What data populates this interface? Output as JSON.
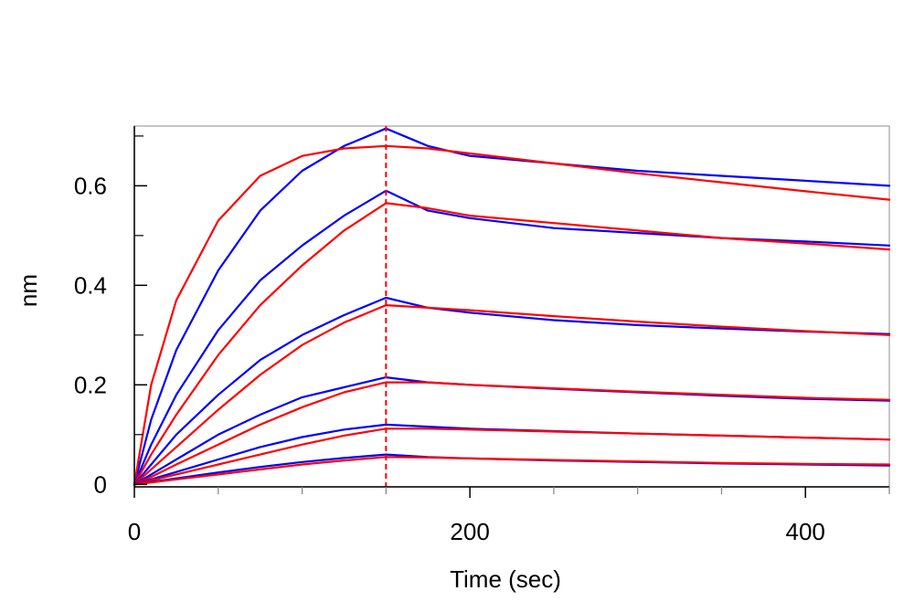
{
  "chart_data": {
    "type": "line",
    "title": "",
    "xlabel": "Time (sec)",
    "ylabel": "nm",
    "xlim": [
      0,
      450
    ],
    "ylim": [
      -0.005,
      0.72
    ],
    "x_ticks": [
      0,
      200,
      400
    ],
    "x_tick_labels": [
      "0",
      "200",
      "400"
    ],
    "y_ticks": [
      0,
      0.2,
      0.4,
      0.6
    ],
    "y_tick_labels": [
      "0",
      "0.2",
      "0.4",
      "0.6"
    ],
    "grid": false,
    "legend": "none",
    "association_end": 150,
    "colors": {
      "measured": "#0000ff",
      "fit": "#ff0000",
      "marker": "#ff0000"
    },
    "series": [
      {
        "role": "measured",
        "peak": 0.715,
        "end": 0.6,
        "x": [
          0,
          10,
          25,
          50,
          75,
          100,
          125,
          150,
          175,
          200,
          250,
          300,
          350,
          400,
          450
        ],
        "y": [
          0.0,
          0.13,
          0.27,
          0.43,
          0.55,
          0.63,
          0.68,
          0.715,
          0.68,
          0.66,
          0.645,
          0.63,
          0.62,
          0.61,
          0.6
        ]
      },
      {
        "role": "fit",
        "x": [
          0,
          10,
          25,
          50,
          75,
          100,
          125,
          150,
          175,
          200,
          250,
          300,
          350,
          400,
          450
        ],
        "y": [
          0.0,
          0.2,
          0.37,
          0.53,
          0.62,
          0.66,
          0.675,
          0.68,
          0.675,
          0.665,
          0.645,
          0.625,
          0.607,
          0.589,
          0.572
        ]
      },
      {
        "role": "measured",
        "x": [
          0,
          10,
          25,
          50,
          75,
          100,
          125,
          150,
          175,
          200,
          250,
          300,
          350,
          400,
          450
        ],
        "y": [
          0.0,
          0.08,
          0.18,
          0.31,
          0.41,
          0.48,
          0.54,
          0.59,
          0.55,
          0.535,
          0.515,
          0.505,
          0.495,
          0.488,
          0.48
        ]
      },
      {
        "role": "fit",
        "x": [
          0,
          10,
          25,
          50,
          75,
          100,
          125,
          150,
          175,
          200,
          250,
          300,
          350,
          400,
          450
        ],
        "y": [
          0.0,
          0.06,
          0.14,
          0.26,
          0.36,
          0.44,
          0.51,
          0.565,
          0.555,
          0.54,
          0.525,
          0.51,
          0.495,
          0.484,
          0.472
        ]
      },
      {
        "role": "measured",
        "x": [
          0,
          10,
          25,
          50,
          75,
          100,
          125,
          150,
          175,
          200,
          250,
          300,
          350,
          400,
          450
        ],
        "y": [
          0.0,
          0.04,
          0.1,
          0.18,
          0.25,
          0.3,
          0.34,
          0.375,
          0.355,
          0.345,
          0.33,
          0.32,
          0.313,
          0.307,
          0.302
        ]
      },
      {
        "role": "fit",
        "x": [
          0,
          10,
          25,
          50,
          75,
          100,
          125,
          150,
          175,
          200,
          250,
          300,
          350,
          400,
          450
        ],
        "y": [
          0.0,
          0.03,
          0.075,
          0.15,
          0.22,
          0.28,
          0.325,
          0.36,
          0.355,
          0.35,
          0.338,
          0.327,
          0.317,
          0.308,
          0.3
        ]
      },
      {
        "role": "measured",
        "x": [
          0,
          10,
          25,
          50,
          75,
          100,
          125,
          150,
          175,
          200,
          250,
          300,
          350,
          400,
          450
        ],
        "y": [
          0.0,
          0.02,
          0.05,
          0.1,
          0.14,
          0.175,
          0.195,
          0.215,
          0.205,
          0.2,
          0.192,
          0.185,
          0.178,
          0.172,
          0.168
        ]
      },
      {
        "role": "fit",
        "x": [
          0,
          10,
          25,
          50,
          75,
          100,
          125,
          150,
          175,
          200,
          250,
          300,
          350,
          400,
          450
        ],
        "y": [
          0.0,
          0.015,
          0.04,
          0.08,
          0.12,
          0.155,
          0.185,
          0.205,
          0.205,
          0.2,
          0.193,
          0.186,
          0.18,
          0.174,
          0.17
        ]
      },
      {
        "role": "measured",
        "x": [
          0,
          10,
          25,
          50,
          75,
          100,
          125,
          150,
          175,
          200,
          250,
          300,
          350,
          400,
          450
        ],
        "y": [
          0.0,
          0.01,
          0.025,
          0.05,
          0.075,
          0.095,
          0.11,
          0.12,
          0.116,
          0.112,
          0.107,
          0.102,
          0.098,
          0.094,
          0.09
        ]
      },
      {
        "role": "fit",
        "x": [
          0,
          10,
          25,
          50,
          75,
          100,
          125,
          150,
          175,
          200,
          250,
          300,
          350,
          400,
          450
        ],
        "y": [
          0.0,
          0.008,
          0.02,
          0.04,
          0.06,
          0.08,
          0.098,
          0.112,
          0.112,
          0.11,
          0.106,
          0.102,
          0.098,
          0.094,
          0.09
        ]
      },
      {
        "role": "measured",
        "x": [
          0,
          10,
          25,
          50,
          75,
          100,
          125,
          150,
          175,
          200,
          250,
          300,
          350,
          400,
          450
        ],
        "y": [
          0.0,
          0.005,
          0.012,
          0.024,
          0.035,
          0.045,
          0.053,
          0.06,
          0.055,
          0.052,
          0.048,
          0.045,
          0.042,
          0.04,
          0.038
        ]
      },
      {
        "role": "fit",
        "x": [
          0,
          10,
          25,
          50,
          75,
          100,
          125,
          150,
          175,
          200,
          250,
          300,
          350,
          400,
          450
        ],
        "y": [
          0.0,
          0.004,
          0.01,
          0.02,
          0.03,
          0.04,
          0.048,
          0.055,
          0.054,
          0.052,
          0.049,
          0.046,
          0.043,
          0.041,
          0.04
        ]
      }
    ]
  }
}
